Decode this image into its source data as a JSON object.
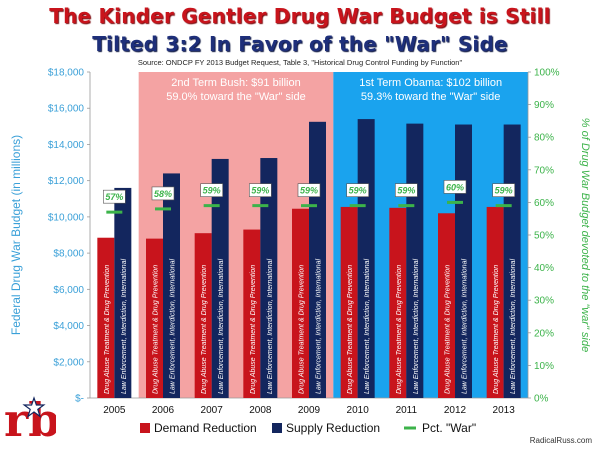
{
  "title_line1": "The Kinder Gentler Drug War Budget is Still",
  "title_line2": "Tilted 3:2 In Favor of the \"War\" Side",
  "source": "Source:  ONDCP FY 2013 Budget Request, Table 3, \"Historical Drug Control Funding by Function\"",
  "credit": "RadicalRuss.com",
  "logo_text": "rb",
  "chart_data": {
    "type": "bar",
    "categories": [
      "2005",
      "2006",
      "2007",
      "2008",
      "2009",
      "2010",
      "2011",
      "2012",
      "2013"
    ],
    "series": [
      {
        "name": "Demand Reduction",
        "color": "#c8141c",
        "bar_label": "Drug Abuse Treatment & Drug Prevention",
        "values": [
          8850,
          8800,
          9100,
          9300,
          10450,
          10550,
          10500,
          10200,
          10550
        ]
      },
      {
        "name": "Supply Reduction",
        "color": "#13265e",
        "bar_label": "Law Enforcement, Interdiction, International",
        "values": [
          11600,
          12400,
          13200,
          13250,
          15250,
          15400,
          15150,
          15100,
          15100
        ]
      }
    ],
    "pct_war": {
      "name": "Pct. \"War\"",
      "color": "#3cb34a",
      "values": [
        0.57,
        0.58,
        0.59,
        0.59,
        0.59,
        0.59,
        0.59,
        0.6,
        0.59
      ],
      "labels": [
        "57%",
        "58%",
        "59%",
        "59%",
        "59%",
        "59%",
        "59%",
        "60%",
        "59%"
      ]
    },
    "ylabel": "Federal Drug War Budget (in millions)",
    "ylabel_right": "% of Drug War Budget devoted to the \"war\" side",
    "ylim": [
      0,
      18000
    ],
    "ylim_right": [
      0,
      1
    ],
    "yticks_left": [
      "$-",
      "$2,000",
      "$4,000",
      "$6,000",
      "$8,000",
      "$10,000",
      "$12,000",
      "$14,000",
      "$16,000",
      "$18,000"
    ],
    "yticks_right": [
      "0%",
      "10%",
      "20%",
      "30%",
      "40%",
      "50%",
      "60%",
      "70%",
      "80%",
      "90%",
      "100%"
    ],
    "grid": false,
    "legend": "bottom",
    "regions": [
      {
        "name": "bush",
        "from": "2006",
        "to": "2009",
        "color": "#f4a3a3",
        "line1": "2nd Term Bush: $91 billion",
        "line2": "59.0% toward the \"War\" side"
      },
      {
        "name": "obama",
        "from": "2010",
        "to": "2013",
        "color": "#1aa3ee",
        "line1": "1st Term Obama: $102 billion",
        "line2": "59.3% toward the \"War\" side"
      }
    ]
  }
}
